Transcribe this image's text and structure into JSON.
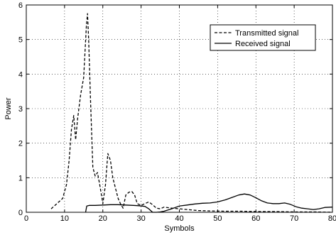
{
  "chart_data": {
    "type": "line",
    "title": "",
    "xlabel": "Symbols",
    "ylabel": "Power",
    "xlim": [
      0,
      80
    ],
    "ylim": [
      0,
      6
    ],
    "xticks": [
      "0",
      "10",
      "20",
      "30",
      "40",
      "50",
      "60",
      "70",
      "80"
    ],
    "yticks": [
      "0",
      "1",
      "2",
      "3",
      "4",
      "5",
      "6"
    ],
    "grid": "dotted",
    "legend_position": "top-right",
    "series": [
      {
        "name": "Transmitted signal",
        "style": "dashed",
        "color": "#000000",
        "x": [
          6.5,
          8,
          9.5,
          10.5,
          11.2,
          11.8,
          12.4,
          12.9,
          13.4,
          14.2,
          15,
          15.7,
          16.0,
          16.3,
          16.8,
          17.4,
          18,
          18.6,
          19.2,
          20,
          20.7,
          21.3,
          22,
          22.6,
          23.3,
          24,
          24.6,
          25.3,
          26,
          26.8,
          27.6,
          28.3,
          29,
          30,
          31,
          32,
          33,
          34,
          35,
          36,
          38,
          40,
          42,
          45,
          48,
          52,
          56,
          60,
          65,
          70,
          75,
          80
        ],
        "y": [
          0.1,
          0.25,
          0.4,
          0.8,
          1.5,
          2.4,
          2.8,
          2.1,
          2.7,
          3.4,
          3.9,
          5.4,
          5.75,
          5.0,
          3.2,
          1.3,
          1.05,
          1.15,
          0.8,
          0.25,
          0.8,
          1.7,
          1.5,
          1.0,
          0.7,
          0.4,
          0.25,
          0.12,
          0.5,
          0.58,
          0.6,
          0.5,
          0.25,
          0.2,
          0.25,
          0.3,
          0.22,
          0.12,
          0.1,
          0.15,
          0.12,
          0.1,
          0.08,
          0.05,
          0.04,
          0.03,
          0.03,
          0.02,
          0.02,
          0.01,
          0.01,
          0.0
        ]
      },
      {
        "name": "Received signal",
        "style": "solid",
        "color": "#000000",
        "x": [
          15.5,
          15.8,
          16.5,
          18,
          20,
          22,
          24,
          26,
          28,
          29.5,
          31,
          32,
          33,
          34,
          35,
          36,
          38,
          40,
          42,
          44,
          46,
          48,
          50,
          52,
          54,
          55.5,
          57,
          58.5,
          60,
          61.5,
          63,
          64.5,
          66,
          67.5,
          69,
          70.5,
          72,
          73.5,
          75,
          76.5,
          78,
          80
        ],
        "y": [
          0.0,
          0.18,
          0.2,
          0.2,
          0.21,
          0.22,
          0.22,
          0.21,
          0.2,
          0.19,
          0.17,
          0.1,
          0.0,
          0.0,
          0.01,
          0.03,
          0.1,
          0.18,
          0.21,
          0.24,
          0.26,
          0.27,
          0.3,
          0.36,
          0.44,
          0.5,
          0.53,
          0.5,
          0.42,
          0.33,
          0.27,
          0.25,
          0.25,
          0.27,
          0.23,
          0.16,
          0.12,
          0.1,
          0.08,
          0.1,
          0.14,
          0.15
        ]
      }
    ]
  }
}
